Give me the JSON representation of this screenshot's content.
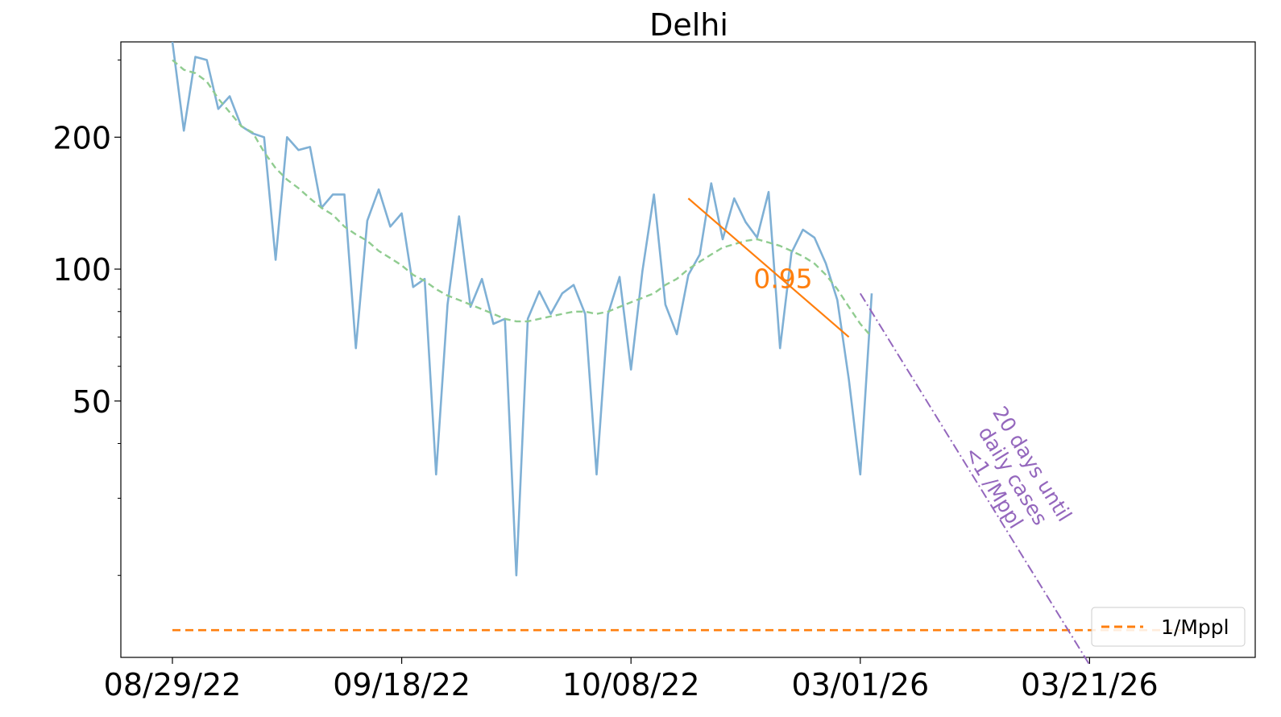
{
  "chart_data": {
    "type": "line",
    "title": "Delhi",
    "xlabel": "",
    "ylabel": "",
    "y_scale": "log",
    "ylim": [
      13,
      330
    ],
    "x_ticks": [
      "08/29/22",
      "09/18/22",
      "10/08/22",
      "03/01/26",
      "03/21/26"
    ],
    "y_ticks": [
      {
        "value": 200,
        "label": "200"
      },
      {
        "value": 100,
        "label": "100"
      },
      {
        "value": 50,
        "label": "50"
      }
    ],
    "series": [
      {
        "name": "",
        "color": "#7fb0d5",
        "style": "solid",
        "values": [
          330,
          207,
          305,
          300,
          232,
          248,
          212,
          204,
          200,
          105,
          200,
          187,
          190,
          138,
          148,
          148,
          66,
          129,
          152,
          125,
          134,
          91,
          95,
          34,
          83,
          132,
          82,
          95,
          75,
          77,
          20,
          77,
          89,
          79,
          88,
          92,
          79,
          34,
          79,
          96,
          59,
          99,
          148,
          83,
          71,
          97,
          108,
          157,
          117,
          145,
          128,
          118,
          150,
          66,
          109,
          123,
          118,
          103,
          85,
          56,
          34,
          88
        ]
      },
      {
        "name": "",
        "color": "#90cc90",
        "style": "dashed",
        "values": [
          300,
          285,
          280,
          268,
          245,
          228,
          212,
          205,
          185,
          170,
          160,
          153,
          145,
          138,
          133,
          125,
          120,
          116,
          110,
          106,
          102,
          97,
          94,
          90,
          87,
          85,
          83,
          81,
          79,
          77,
          76,
          76,
          77,
          78,
          79,
          80,
          80,
          79,
          80,
          82,
          84,
          86,
          88,
          92,
          95,
          100,
          104,
          108,
          112,
          114,
          116,
          117,
          115,
          113,
          110,
          107,
          103,
          97,
          90,
          82,
          75,
          70
        ]
      }
    ],
    "trend_line": {
      "color": "#ff7f0e",
      "label": "0.95",
      "x_start": 45,
      "x_end": 59,
      "y_start": 145,
      "y_end": 70
    },
    "projection": {
      "color": "#9467bd",
      "x_start": 60,
      "x_end": 80,
      "y_start": 88,
      "y_end": 12.5,
      "annotation": [
        "20 days until",
        "daily cases",
        "<1 /Mppl"
      ]
    },
    "threshold": {
      "name": "1/Mppl",
      "color": "#ff7f0e",
      "value": 15,
      "style": "dashed"
    },
    "legend": {
      "position": "bottom-right",
      "entries": [
        "1/Mppl"
      ]
    },
    "grid": false
  }
}
